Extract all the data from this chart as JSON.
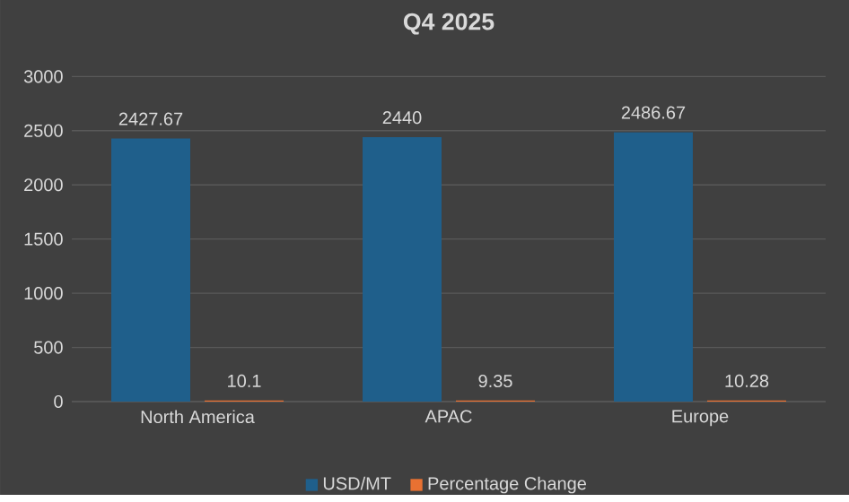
{
  "chart_data": {
    "type": "bar",
    "title": "Q4 2025",
    "categories": [
      "North America",
      "APAC",
      "Europe"
    ],
    "series": [
      {
        "name": "USD/MT",
        "color": "#1f5f8b",
        "values": [
          2427.67,
          2440,
          2486.67
        ],
        "value_labels": [
          "2427.67",
          "2440",
          "2486.67"
        ]
      },
      {
        "name": "Percentage Change",
        "color": "#e97132",
        "values": [
          10.1,
          9.35,
          10.28
        ],
        "value_labels": [
          "10.1",
          "9.35",
          "10.28"
        ]
      }
    ],
    "ylim": [
      0,
      3000
    ],
    "yticks": [
      0,
      500,
      1000,
      1500,
      2000,
      2500,
      3000
    ],
    "grid": "y",
    "legend": "bottom"
  }
}
